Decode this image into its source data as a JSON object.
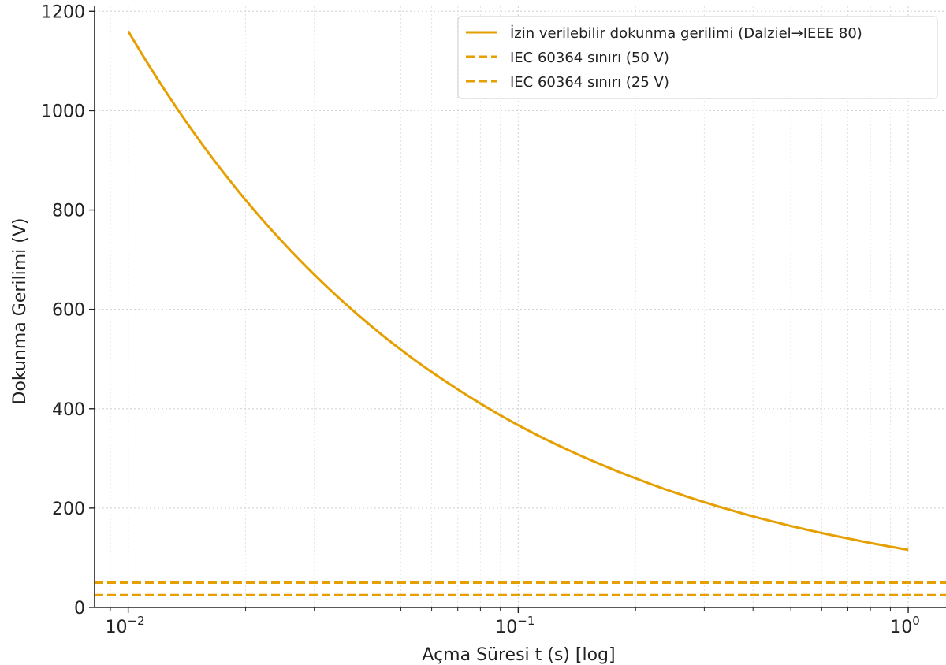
{
  "chart_data": {
    "type": "line",
    "xlabel": "Açma Süresi t (s) [log]",
    "ylabel": "Dokunma Gerilimi (V)",
    "xscale": "log",
    "xlim": [
      0.0082,
      1.25
    ],
    "ylim": [
      0,
      1210
    ],
    "grid": true,
    "legend_position": "top-right",
    "x_ticks": [
      {
        "value": 0.01,
        "base": "10",
        "exp": "−2"
      },
      {
        "value": 0.1,
        "base": "10",
        "exp": "−1"
      },
      {
        "value": 1,
        "base": "10",
        "exp": "0"
      }
    ],
    "y_ticks": [
      {
        "value": 0,
        "label": "0"
      },
      {
        "value": 200,
        "label": "200"
      },
      {
        "value": 400,
        "label": "400"
      },
      {
        "value": 600,
        "label": "600"
      },
      {
        "value": 800,
        "label": "800"
      },
      {
        "value": 1000,
        "label": "1000"
      },
      {
        "value": 1200,
        "label": "1200"
      }
    ],
    "series": [
      {
        "name": "İzin verilebilir dokunma gerilimi (Dalziel→IEEE 80)",
        "style": "solid",
        "color": "#E69F00",
        "x": [
          0.01,
          0.015,
          0.02,
          0.03,
          0.05,
          0.07,
          0.1,
          0.15,
          0.2,
          0.3,
          0.5,
          0.7,
          1.0
        ],
        "y": [
          1160,
          947,
          820,
          670,
          519,
          439,
          367,
          300,
          260,
          212,
          164,
          139,
          116
        ]
      },
      {
        "name": "IEC 60364 sınırı (50 V)",
        "style": "dashed",
        "color": "#E69F00",
        "x": [
          0.0082,
          1.25
        ],
        "y": [
          50,
          50
        ]
      },
      {
        "name": "IEC 60364 sınırı (25 V)",
        "style": "dashed",
        "color": "#E69F00",
        "x": [
          0.0082,
          1.25
        ],
        "y": [
          25,
          25
        ]
      }
    ]
  }
}
